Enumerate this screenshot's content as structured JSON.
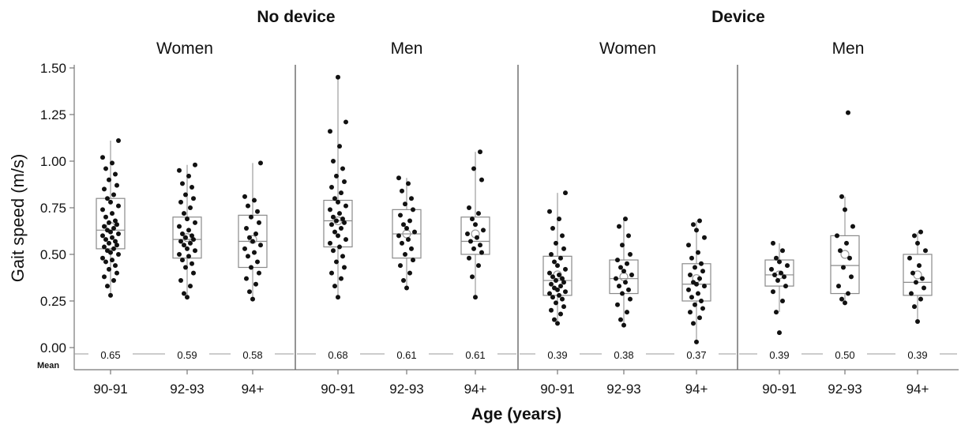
{
  "chart_data": {
    "type": "boxplot",
    "groups": [
      {
        "label": "No device",
        "panels": [
          0,
          1
        ]
      },
      {
        "label": "Device",
        "panels": [
          2,
          3
        ]
      }
    ],
    "ylabel": "Gait speed (m/s)",
    "xlabel": "Age (years)",
    "mean_row_label": "Mean",
    "ylim": [
      -0.05,
      1.5
    ],
    "yticks": [
      "0.00",
      "0.25",
      "0.50",
      "0.75",
      "1.00",
      "1.25",
      "1.50"
    ],
    "ytick_values": [
      0.0,
      0.25,
      0.5,
      0.75,
      1.0,
      1.25,
      1.5
    ],
    "categories": [
      "90-91",
      "92-93",
      "94+"
    ],
    "panels": [
      {
        "sex": "Women",
        "boxes": [
          {
            "q1": 0.53,
            "median": 0.63,
            "q3": 0.8,
            "min": 0.28,
            "max": 1.11,
            "mean": 0.65,
            "mean_label": "0.65",
            "points": [
              0.28,
              0.33,
              0.36,
              0.38,
              0.4,
              0.42,
              0.44,
              0.46,
              0.47,
              0.48,
              0.5,
              0.51,
              0.52,
              0.53,
              0.54,
              0.55,
              0.56,
              0.57,
              0.58,
              0.59,
              0.6,
              0.61,
              0.62,
              0.63,
              0.64,
              0.65,
              0.66,
              0.67,
              0.68,
              0.7,
              0.72,
              0.74,
              0.76,
              0.78,
              0.8,
              0.82,
              0.85,
              0.87,
              0.9,
              0.93,
              0.96,
              0.99,
              1.02,
              1.11
            ]
          },
          {
            "q1": 0.48,
            "median": 0.58,
            "q3": 0.7,
            "min": 0.27,
            "max": 0.98,
            "mean": 0.59,
            "mean_label": "0.59",
            "points": [
              0.27,
              0.29,
              0.33,
              0.36,
              0.4,
              0.43,
              0.45,
              0.47,
              0.49,
              0.5,
              0.52,
              0.53,
              0.55,
              0.56,
              0.57,
              0.58,
              0.59,
              0.6,
              0.61,
              0.63,
              0.65,
              0.67,
              0.69,
              0.72,
              0.75,
              0.78,
              0.8,
              0.82,
              0.86,
              0.88,
              0.92,
              0.95,
              0.98
            ]
          },
          {
            "q1": 0.43,
            "median": 0.57,
            "q3": 0.71,
            "min": 0.26,
            "max": 0.99,
            "mean": 0.58,
            "mean_label": "0.58",
            "points": [
              0.26,
              0.3,
              0.34,
              0.37,
              0.4,
              0.43,
              0.46,
              0.49,
              0.51,
              0.53,
              0.55,
              0.57,
              0.59,
              0.61,
              0.64,
              0.67,
              0.7,
              0.73,
              0.76,
              0.79,
              0.81,
              0.99
            ]
          }
        ]
      },
      {
        "sex": "Men",
        "boxes": [
          {
            "q1": 0.54,
            "median": 0.68,
            "q3": 0.79,
            "min": 0.27,
            "max": 1.45,
            "mean": 0.68,
            "mean_label": "0.68",
            "points": [
              0.27,
              0.33,
              0.37,
              0.4,
              0.43,
              0.46,
              0.49,
              0.52,
              0.54,
              0.56,
              0.58,
              0.6,
              0.62,
              0.64,
              0.66,
              0.67,
              0.68,
              0.69,
              0.7,
              0.72,
              0.74,
              0.76,
              0.78,
              0.8,
              0.83,
              0.86,
              0.89,
              0.92,
              0.96,
              1.0,
              1.08,
              1.16,
              1.21,
              1.45
            ]
          },
          {
            "q1": 0.48,
            "median": 0.61,
            "q3": 0.74,
            "min": 0.32,
            "max": 0.91,
            "mean": 0.61,
            "mean_label": "0.61",
            "points": [
              0.32,
              0.36,
              0.4,
              0.44,
              0.47,
              0.5,
              0.53,
              0.56,
              0.58,
              0.6,
              0.62,
              0.64,
              0.66,
              0.68,
              0.71,
              0.74,
              0.77,
              0.8,
              0.84,
              0.88,
              0.91
            ]
          },
          {
            "q1": 0.5,
            "median": 0.57,
            "q3": 0.7,
            "min": 0.27,
            "max": 1.05,
            "mean": 0.61,
            "mean_label": "0.61",
            "points": [
              0.27,
              0.38,
              0.44,
              0.48,
              0.51,
              0.53,
              0.55,
              0.57,
              0.59,
              0.61,
              0.63,
              0.66,
              0.69,
              0.72,
              0.75,
              0.9,
              0.96,
              1.05
            ]
          }
        ]
      },
      {
        "sex": "Women",
        "boxes": [
          {
            "q1": 0.28,
            "median": 0.36,
            "q3": 0.49,
            "min": 0.13,
            "max": 0.83,
            "mean": 0.39,
            "mean_label": "0.39",
            "points": [
              0.13,
              0.15,
              0.18,
              0.2,
              0.22,
              0.24,
              0.26,
              0.27,
              0.28,
              0.29,
              0.3,
              0.31,
              0.32,
              0.33,
              0.34,
              0.35,
              0.36,
              0.37,
              0.38,
              0.39,
              0.4,
              0.42,
              0.44,
              0.46,
              0.48,
              0.5,
              0.53,
              0.56,
              0.6,
              0.64,
              0.69,
              0.73,
              0.83
            ]
          },
          {
            "q1": 0.29,
            "median": 0.37,
            "q3": 0.47,
            "min": 0.12,
            "max": 0.69,
            "mean": 0.38,
            "mean_label": "0.38",
            "points": [
              0.12,
              0.15,
              0.19,
              0.23,
              0.26,
              0.29,
              0.31,
              0.33,
              0.35,
              0.37,
              0.39,
              0.41,
              0.43,
              0.45,
              0.47,
              0.5,
              0.55,
              0.6,
              0.65,
              0.69
            ]
          },
          {
            "q1": 0.25,
            "median": 0.34,
            "q3": 0.45,
            "min": 0.03,
            "max": 0.68,
            "mean": 0.37,
            "mean_label": "0.37",
            "points": [
              0.03,
              0.13,
              0.16,
              0.19,
              0.21,
              0.23,
              0.25,
              0.27,
              0.29,
              0.31,
              0.33,
              0.34,
              0.35,
              0.37,
              0.39,
              0.41,
              0.43,
              0.45,
              0.48,
              0.51,
              0.55,
              0.59,
              0.63,
              0.66,
              0.68
            ]
          }
        ]
      },
      {
        "sex": "Men",
        "boxes": [
          {
            "q1": 0.33,
            "median": 0.39,
            "q3": 0.47,
            "min": 0.19,
            "max": 0.56,
            "mean": 0.39,
            "mean_label": "0.39",
            "points": [
              0.08,
              0.19,
              0.25,
              0.3,
              0.33,
              0.36,
              0.38,
              0.39,
              0.4,
              0.42,
              0.44,
              0.46,
              0.48,
              0.52,
              0.56
            ]
          },
          {
            "q1": 0.29,
            "median": 0.44,
            "q3": 0.6,
            "min": 0.24,
            "max": 0.81,
            "mean": 0.5,
            "mean_label": "0.50",
            "points": [
              0.24,
              0.26,
              0.29,
              0.33,
              0.38,
              0.43,
              0.48,
              0.52,
              0.56,
              0.6,
              0.65,
              0.74,
              0.81,
              1.26
            ]
          },
          {
            "q1": 0.28,
            "median": 0.35,
            "q3": 0.5,
            "min": 0.14,
            "max": 0.62,
            "mean": 0.39,
            "mean_label": "0.39",
            "points": [
              0.14,
              0.22,
              0.26,
              0.29,
              0.32,
              0.35,
              0.37,
              0.4,
              0.44,
              0.48,
              0.52,
              0.56,
              0.6,
              0.62
            ]
          }
        ]
      }
    ]
  },
  "colors": {
    "axis": "#777777",
    "box_stroke": "#8a8a8a",
    "point": "#111111",
    "mean_marker": "#999999",
    "divider": "#666666"
  }
}
